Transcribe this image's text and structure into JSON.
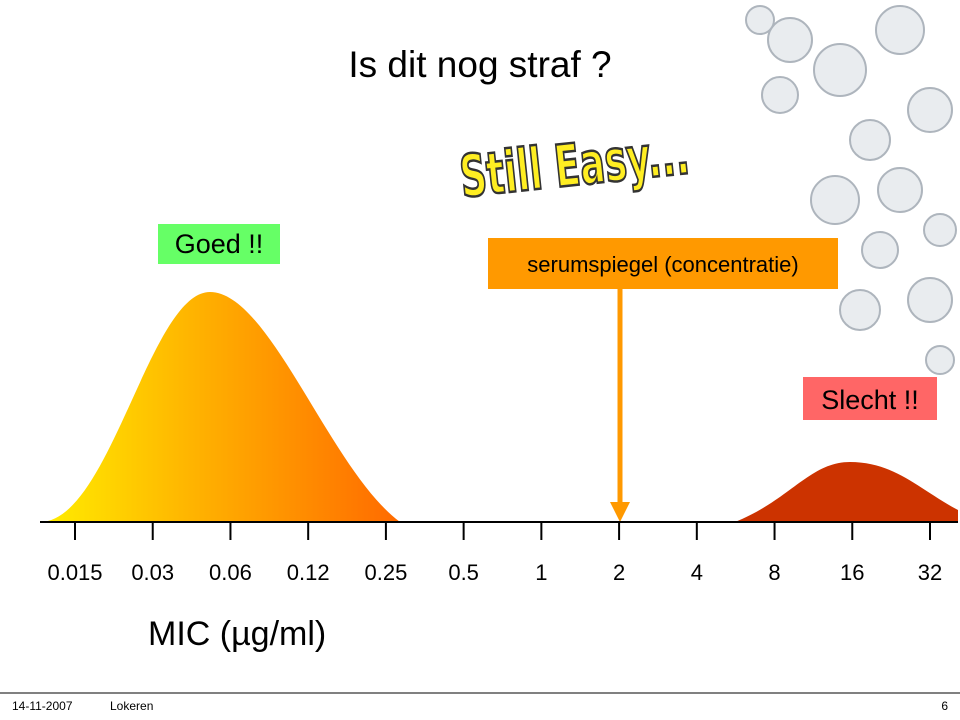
{
  "slide": {
    "title": "Is dit nog straf ?",
    "banner": "Still Easy...",
    "good_label": "Goed !!",
    "concentration_label": "serumspiegel (concentratie)",
    "bad_label": "Slecht !!",
    "axis_ticks": [
      "0.015",
      "0.03",
      "0.06",
      "0.12",
      "0.25",
      "0.5",
      "1",
      "2",
      "4",
      "8",
      "16",
      "32"
    ],
    "axis_label": "MIC (µg/ml)"
  },
  "footer": {
    "date": "14-11-2007",
    "location": "Lokeren",
    "page": "6"
  }
}
